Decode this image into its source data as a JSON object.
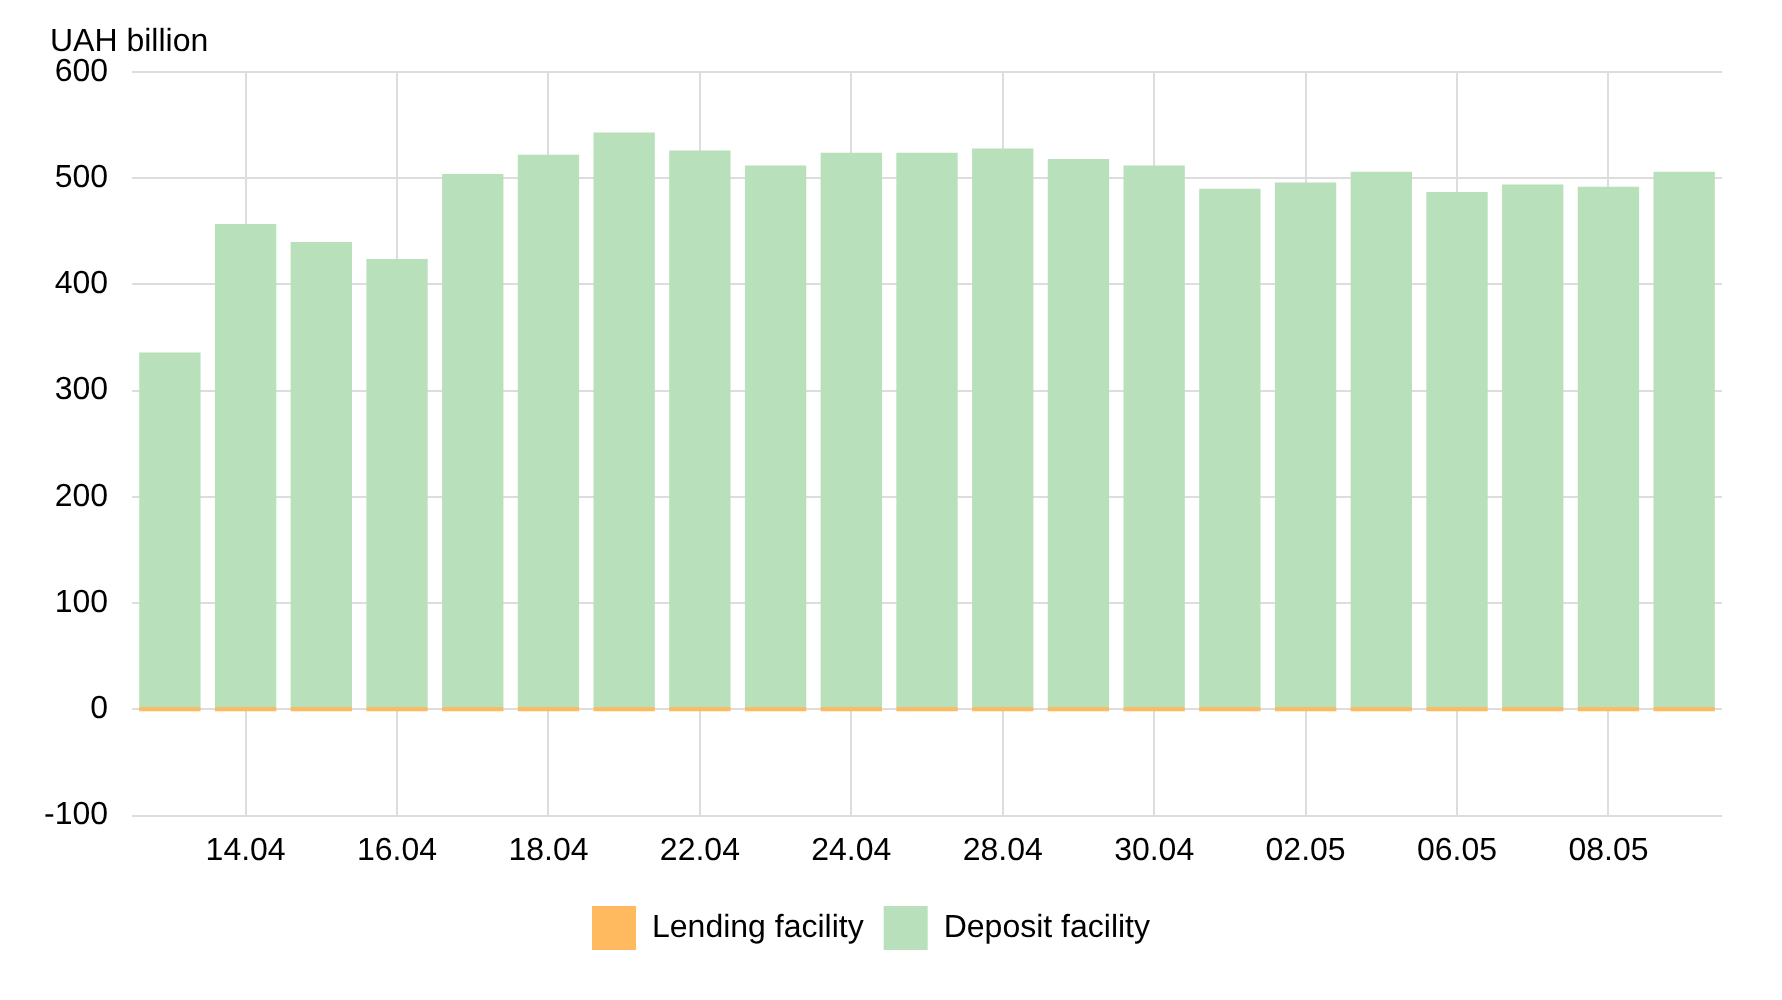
{
  "chart_data": {
    "type": "bar",
    "ylabel": "UAH billion",
    "stacked": true,
    "categories": [
      null,
      "14.04",
      null,
      "16.04",
      null,
      "18.04",
      null,
      "22.04",
      null,
      "24.04",
      null,
      "28.04",
      null,
      "30.04",
      null,
      "02.05",
      null,
      "06.05",
      null,
      "08.05",
      null
    ],
    "series": [
      {
        "name": "Lending facility",
        "color": "#ffb95e",
        "values": [
          0,
          0,
          0,
          0,
          0,
          0,
          0,
          0,
          0,
          0,
          0,
          0,
          0,
          0,
          0,
          0,
          0,
          0,
          0,
          0,
          0
        ]
      },
      {
        "name": "Deposit facility",
        "color": "#b8e0ba",
        "values": [
          336,
          457,
          440,
          424,
          504,
          522,
          543,
          526,
          512,
          524,
          524,
          528,
          518,
          512,
          490,
          496,
          506,
          487,
          494,
          492,
          506
        ]
      }
    ],
    "ylim": [
      -100,
      600
    ],
    "yticks": [
      -100,
      0,
      100,
      200,
      300,
      400,
      500,
      600
    ],
    "grid": true,
    "legend": "bottom"
  }
}
